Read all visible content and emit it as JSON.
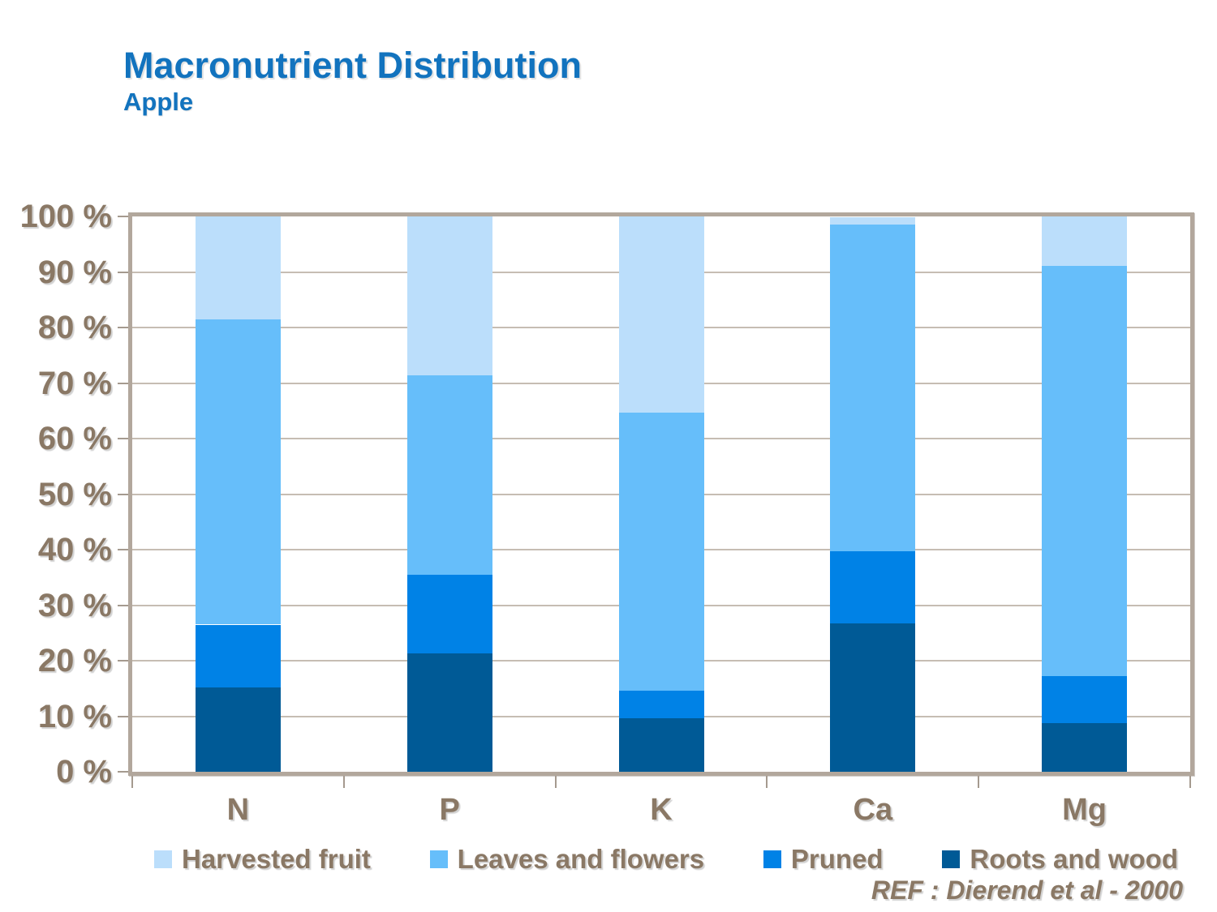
{
  "slide": {
    "title": "Macronutrient Distribution",
    "subtitle": "Apple",
    "reference": "REF :  Dierend et al - 2000"
  },
  "colors": {
    "title_blue": "#1273BE",
    "axis_text": "#8A7865",
    "plot_border": "#B2A79C",
    "gridline": "#C6BDB3",
    "harvested_fruit": "#BBDEFB",
    "leaves_and_flowers": "#66BEFA",
    "pruned": "#0082E6",
    "roots_and_wood": "#005A96"
  },
  "chart_data": {
    "type": "bar",
    "stacked": true,
    "title": "Macronutrient Distribution",
    "subtitle": "Apple",
    "categories": [
      "N",
      "P",
      "K",
      "Ca",
      "Mg"
    ],
    "series": [
      {
        "name": "Harvested fruit",
        "color": "#BBDEFB",
        "values": [
          18.5,
          28.6,
          35.3,
          1.3,
          8.9
        ]
      },
      {
        "name": "Leaves and flowers",
        "color": "#66BEFA",
        "values": [
          55.0,
          35.9,
          50.1,
          58.8,
          73.8
        ]
      },
      {
        "name": "Pruned",
        "color": "#0082E6",
        "values": [
          11.3,
          14.2,
          5.0,
          13.0,
          8.6
        ]
      },
      {
        "name": "Roots and wood",
        "color": "#005A96",
        "values": [
          15.2,
          21.3,
          9.6,
          26.7,
          8.7
        ]
      }
    ],
    "xlabel": "",
    "ylabel": "",
    "ylim": [
      0,
      100
    ],
    "y_tick_step": 10,
    "y_tick_labels": [
      "0 %",
      "10 %",
      "20 %",
      "30 %",
      "40 %",
      "50 %",
      "60 %",
      "70 %",
      "80 %",
      "90 %",
      "100 %"
    ],
    "grid": true,
    "legend_position": "bottom"
  }
}
